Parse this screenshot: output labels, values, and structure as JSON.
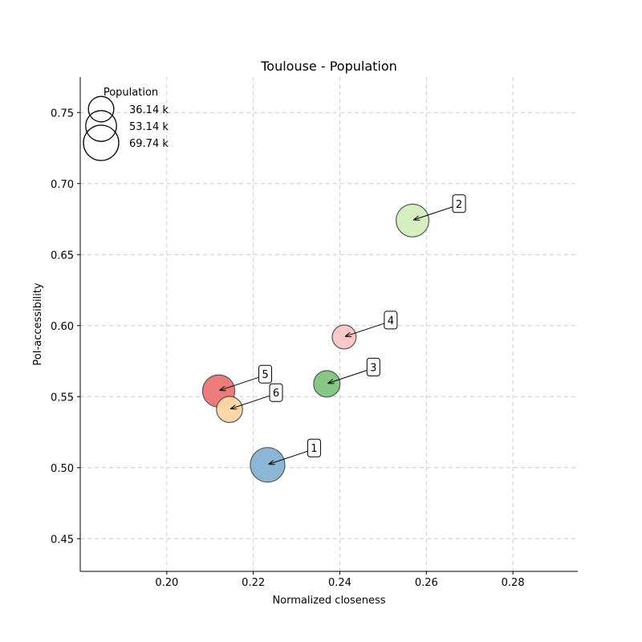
{
  "chart_data": {
    "type": "scatter",
    "title": "Toulouse - Population",
    "xlabel": "Normalized closeness",
    "ylabel": "PoI-accessibility",
    "xlim": [
      0.18,
      0.295
    ],
    "ylim": [
      0.427,
      0.775
    ],
    "xticks": [
      0.2,
      0.22,
      0.24,
      0.26,
      0.28
    ],
    "yticks": [
      0.45,
      0.5,
      0.55,
      0.6,
      0.65,
      0.7,
      0.75
    ],
    "grid": true,
    "legend": {
      "title": "Population",
      "placement": "top-left",
      "entries": [
        {
          "label": "36.14 k",
          "value": 36.14
        },
        {
          "label": "53.14 k",
          "value": 53.14
        },
        {
          "label": "69.74 k",
          "value": 69.74
        }
      ]
    },
    "points": [
      {
        "label": "1",
        "x": 0.2233,
        "y": 0.502,
        "population": 67.0,
        "color": "#86b2d4"
      },
      {
        "label": "2",
        "x": 0.2568,
        "y": 0.674,
        "population": 60.0,
        "color": "#d3eebe"
      },
      {
        "label": "3",
        "x": 0.237,
        "y": 0.559,
        "population": 39.0,
        "color": "#7fc47e"
      },
      {
        "label": "4",
        "x": 0.241,
        "y": 0.592,
        "population": 32.0,
        "color": "#f8c6c4"
      },
      {
        "label": "5",
        "x": 0.212,
        "y": 0.554,
        "population": 58.0,
        "color": "#ec7474"
      },
      {
        "label": "6",
        "x": 0.2145,
        "y": 0.541,
        "population": 38.0,
        "color": "#fdd5a2"
      }
    ]
  }
}
